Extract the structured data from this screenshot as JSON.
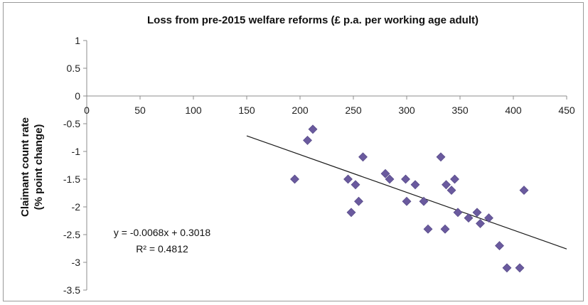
{
  "chart_data": {
    "type": "scatter",
    "title": "Loss from pre-2015 welfare reforms (£ p.a. per working age adult)",
    "ylabel_line1": "Claimant count rate",
    "ylabel_line2": "(% point change)",
    "xlabel": "",
    "xlim": [
      0,
      450
    ],
    "ylim": [
      -3.5,
      1
    ],
    "x_ticks": [
      "0",
      "50",
      "100",
      "150",
      "200",
      "250",
      "300",
      "350",
      "400",
      "450"
    ],
    "y_ticks": [
      "1",
      "0.5",
      "0",
      "-0.5",
      "-1",
      "-1.5",
      "-2",
      "-2.5",
      "-3",
      "-3.5"
    ],
    "points": [
      {
        "x": 195,
        "y": -1.5
      },
      {
        "x": 207,
        "y": -0.8
      },
      {
        "x": 212,
        "y": -0.6
      },
      {
        "x": 245,
        "y": -1.5
      },
      {
        "x": 248,
        "y": -2.1
      },
      {
        "x": 252,
        "y": -1.6
      },
      {
        "x": 255,
        "y": -1.9
      },
      {
        "x": 259,
        "y": -1.1
      },
      {
        "x": 280,
        "y": -1.4
      },
      {
        "x": 284,
        "y": -1.5
      },
      {
        "x": 299,
        "y": -1.5
      },
      {
        "x": 300,
        "y": -1.9
      },
      {
        "x": 308,
        "y": -1.6
      },
      {
        "x": 316,
        "y": -1.9
      },
      {
        "x": 320,
        "y": -2.4
      },
      {
        "x": 332,
        "y": -1.1
      },
      {
        "x": 336,
        "y": -2.4
      },
      {
        "x": 337,
        "y": -1.6
      },
      {
        "x": 342,
        "y": -1.7
      },
      {
        "x": 345,
        "y": -1.5
      },
      {
        "x": 348,
        "y": -2.1
      },
      {
        "x": 358,
        "y": -2.2
      },
      {
        "x": 366,
        "y": -2.1
      },
      {
        "x": 369,
        "y": -2.3
      },
      {
        "x": 377,
        "y": -2.2
      },
      {
        "x": 387,
        "y": -2.7
      },
      {
        "x": 394,
        "y": -3.1
      },
      {
        "x": 406,
        "y": -3.1
      },
      {
        "x": 410,
        "y": -1.7
      }
    ],
    "trendline": {
      "slope": -0.0068,
      "intercept": 0.3018,
      "x_range": [
        150,
        450
      ],
      "equation": "y = -0.0068x + 0.3018",
      "r_squared": "R² = 0.4812"
    },
    "marker_color": "#6a5a9e",
    "trend_color": "#1a1a1a",
    "grid": false,
    "legend": "none"
  }
}
